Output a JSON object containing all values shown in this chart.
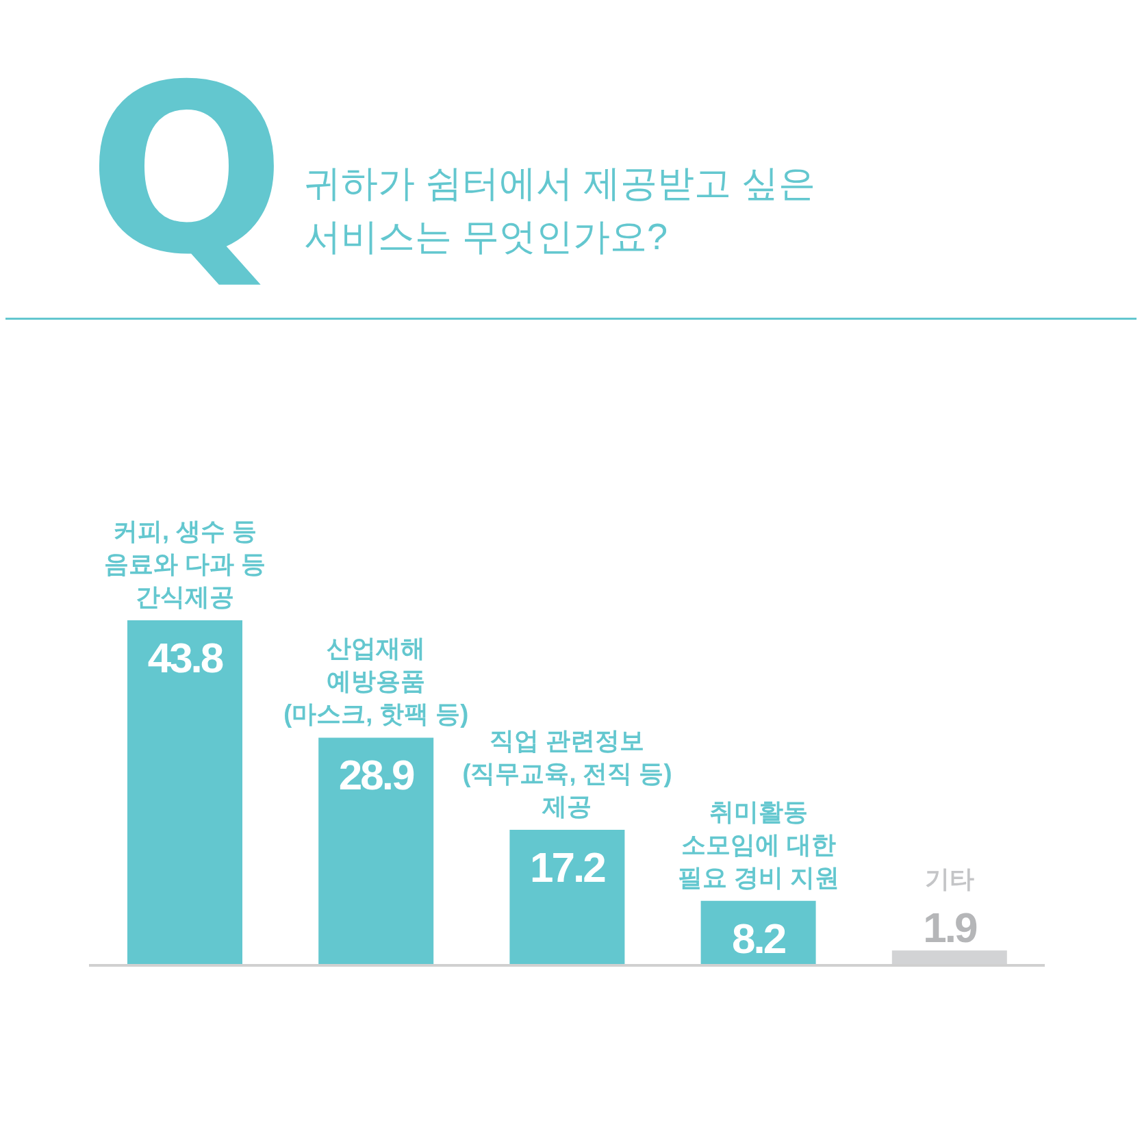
{
  "chart_data": {
    "type": "bar",
    "title": "귀하가 쉼터에서 제공받고 싶은\n서비스는 무엇인가요?",
    "annotations": [
      "Q"
    ],
    "categories": [
      "커피, 생수 등\n음료와 다과  등\n간식제공",
      "산업재해\n예방용품\n(마스크, 핫팩 등)",
      "직업 관련정보\n(직무교육, 전직 등)\n제공",
      "취미활동\n소모임에 대한\n필요 경비 지원",
      "기타"
    ],
    "values": [
      43.8,
      28.9,
      17.2,
      8.2,
      1.9
    ],
    "colors": [
      "#63c7cf",
      "#63c7cf",
      "#63c7cf",
      "#63c7cf",
      "#d2d3d5"
    ],
    "data_labels": true
  }
}
